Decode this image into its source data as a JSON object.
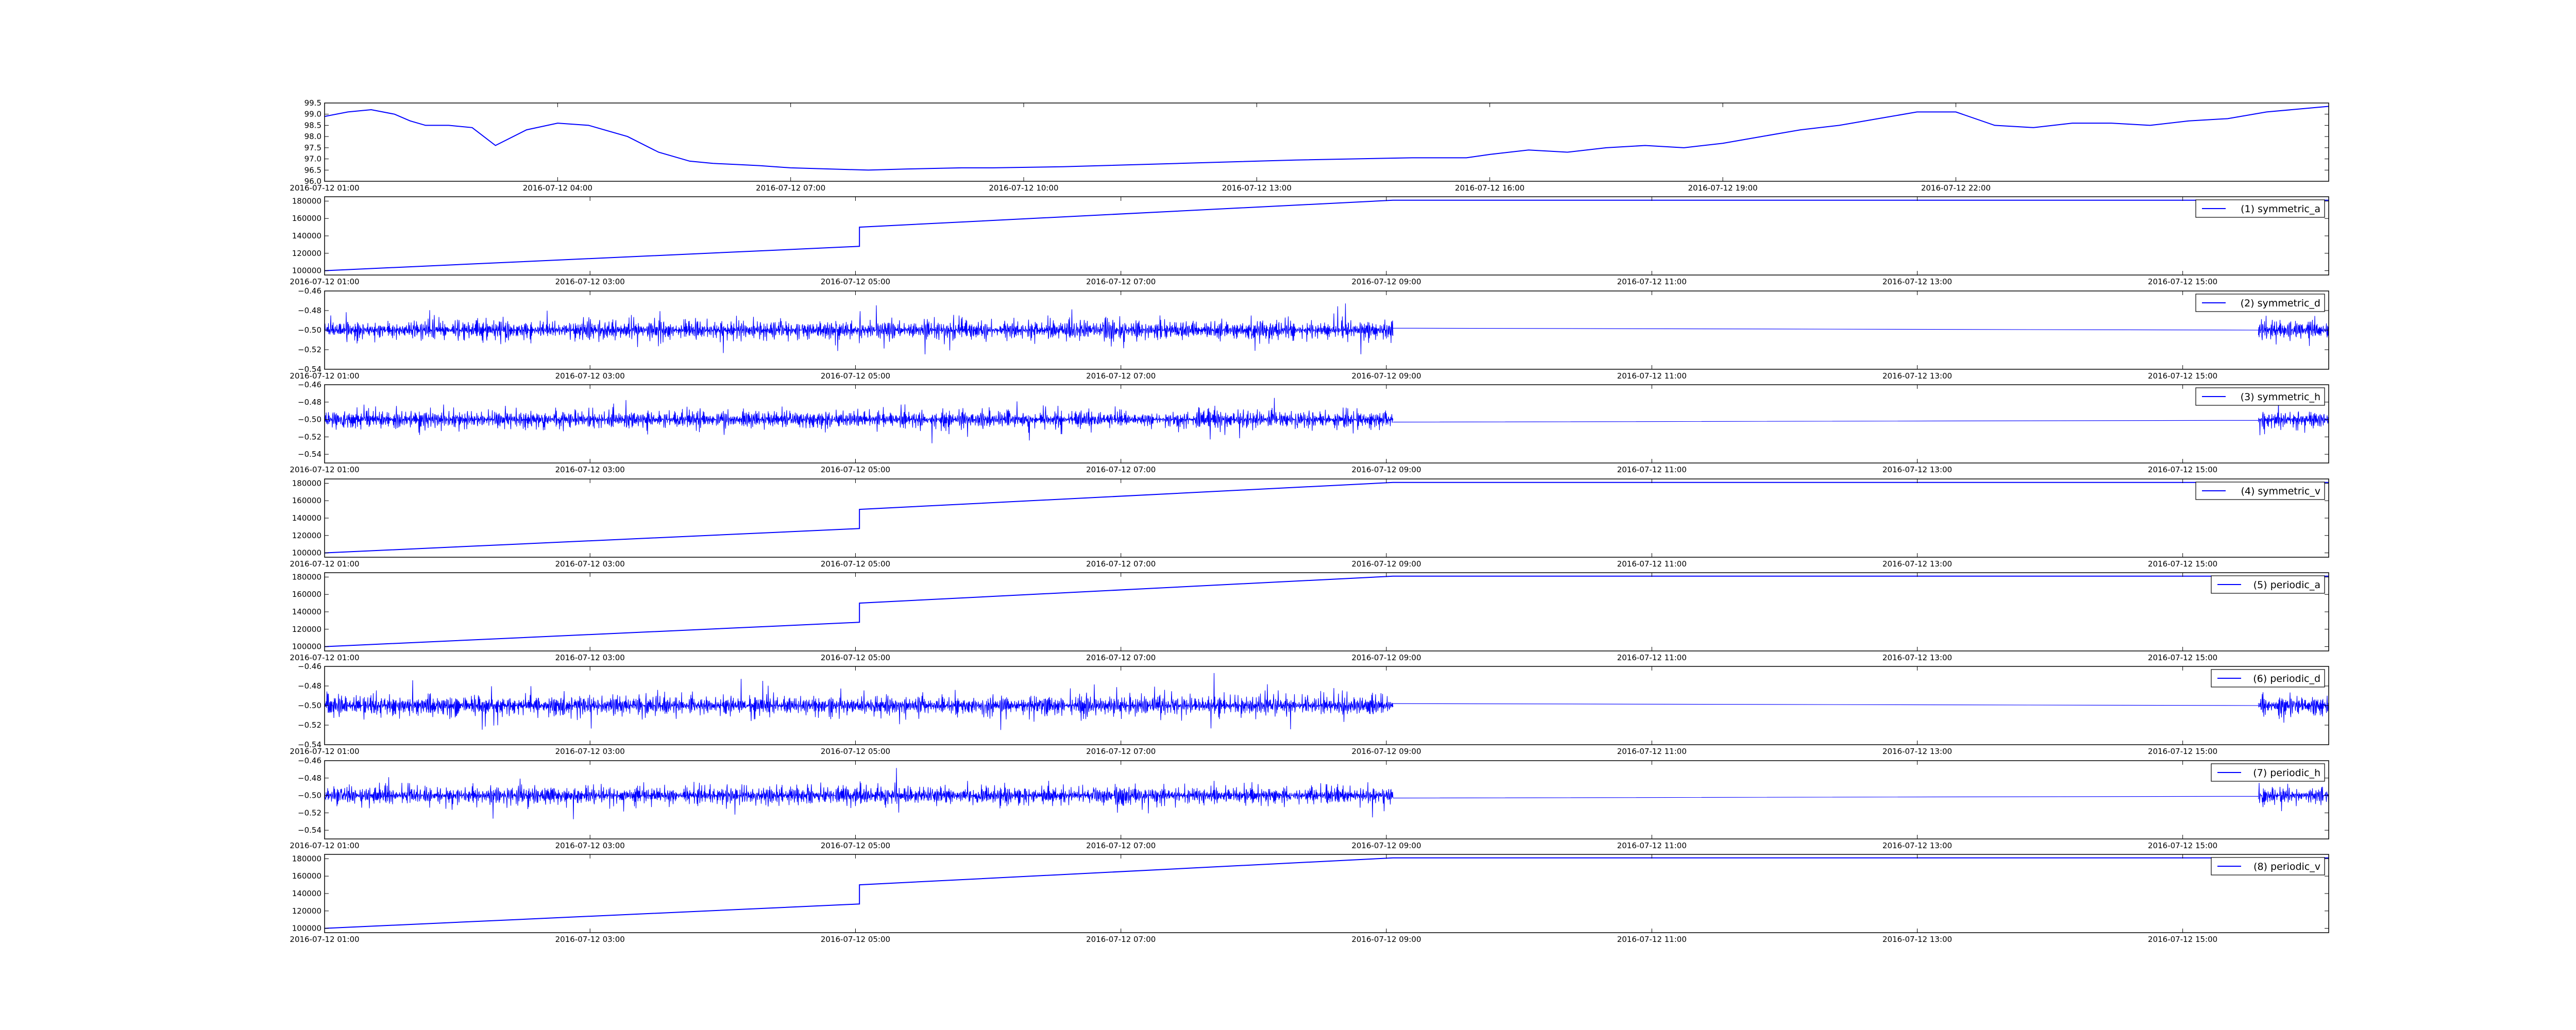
{
  "chart_data": [
    {
      "type": "line",
      "title": "",
      "xlabel": "",
      "ylabel": "",
      "color": "#0000ff",
      "legend": null,
      "xlim_hours": [
        1,
        26.8
      ],
      "ylim": [
        96.0,
        99.5
      ],
      "xtick_hours": [
        1,
        4,
        7,
        10,
        13,
        16,
        19,
        22
      ],
      "xtick_labels": [
        "2016-07-12 01:00",
        "2016-07-12 04:00",
        "2016-07-12 07:00",
        "2016-07-12 10:00",
        "2016-07-12 13:00",
        "2016-07-12 16:00",
        "2016-07-12 19:00",
        "2016-07-12 22:00"
      ],
      "yticks": [
        96.0,
        96.5,
        97.0,
        97.5,
        98.0,
        98.5,
        99.0,
        99.5
      ],
      "ytick_labels": [
        "96.0",
        "96.5",
        "97.0",
        "97.5",
        "98.0",
        "98.5",
        "99.0",
        "99.5"
      ],
      "x_hours": [
        1.0,
        1.3,
        1.6,
        1.9,
        2.1,
        2.3,
        2.6,
        2.9,
        3.2,
        3.6,
        4.0,
        4.4,
        4.9,
        5.3,
        5.5,
        5.7,
        6.0,
        6.3,
        6.6,
        7.0,
        7.5,
        8.0,
        8.5,
        9.2,
        9.6,
        10.5,
        12.0,
        13.5,
        15.0,
        15.7,
        16.0,
        16.5,
        17.0,
        17.5,
        18.0,
        18.5,
        19.0,
        19.5,
        20.0,
        20.5,
        21.0,
        21.5,
        22.0,
        22.5,
        23.0,
        23.5,
        24.0,
        24.5,
        25.0,
        25.5,
        26.0,
        26.8
      ],
      "y": [
        98.9,
        99.1,
        99.2,
        99.0,
        98.7,
        98.5,
        98.5,
        98.4,
        97.6,
        98.3,
        98.6,
        98.5,
        98.0,
        97.3,
        97.1,
        96.9,
        96.8,
        96.75,
        96.7,
        96.6,
        96.55,
        96.5,
        96.55,
        96.6,
        96.6,
        96.65,
        96.8,
        96.95,
        97.05,
        97.05,
        97.2,
        97.4,
        97.3,
        97.5,
        97.6,
        97.5,
        97.7,
        98.0,
        98.3,
        98.5,
        98.8,
        99.1,
        99.1,
        98.5,
        98.4,
        98.6,
        98.6,
        98.5,
        98.7,
        98.8,
        99.1,
        99.35
      ]
    },
    {
      "type": "line",
      "title": "",
      "legend": "(1) symmetric_a",
      "color": "#0000ff",
      "xlim_hours": [
        1,
        16.1
      ],
      "ylim": [
        95000,
        185000
      ],
      "y_offset_text": "1e+00(hidden)",
      "xtick_hours": [
        1,
        3,
        5,
        7,
        9,
        11,
        13,
        15
      ],
      "xtick_labels": [
        "2016-07-12 01:00",
        "2016-07-12 03:00",
        "2016-07-12 05:00",
        "2016-07-12 07:00",
        "2016-07-12 09:00",
        "2016-07-12 11:00",
        "2016-07-12 13:00",
        "2016-07-12 15:00"
      ],
      "yticks": [
        100000,
        120000,
        140000,
        160000,
        180000
      ],
      "ytick_labels": [
        "100000",
        "120000",
        "140000",
        "160000",
        "180000"
      ],
      "x_hours": [
        1.0,
        5.03,
        5.03,
        9.05,
        16.1
      ],
      "y": [
        100000,
        128000,
        150000,
        181000,
        181000
      ]
    },
    {
      "type": "line",
      "title": "",
      "legend": "(2) symmetric_d",
      "color": "#0000ff",
      "xlim_hours": [
        1,
        16.1
      ],
      "ylim": [
        -0.54,
        -0.46
      ],
      "xtick_hours": [
        1,
        3,
        5,
        7,
        9,
        11,
        13,
        15
      ],
      "xtick_labels": [
        "2016-07-12 01:00",
        "2016-07-12 03:00",
        "2016-07-12 05:00",
        "2016-07-12 07:00",
        "2016-07-12 09:00",
        "2016-07-12 11:00",
        "2016-07-12 13:00",
        "2016-07-12 15:00"
      ],
      "yticks": [
        -0.54,
        -0.52,
        -0.5,
        -0.48,
        -0.46
      ],
      "ytick_labels": [
        "−0.54",
        "−0.52",
        "−0.50",
        "−0.48",
        "−0.46"
      ],
      "noise": {
        "mean": -0.5,
        "amplitude": 0.018,
        "segments": [
          [
            1.0,
            9.05
          ],
          [
            15.57,
            16.1
          ]
        ],
        "flat_from": [
          9.05,
          -0.498
        ],
        "flat_to": [
          15.57,
          -0.5
        ]
      }
    },
    {
      "type": "line",
      "title": "",
      "legend": "(3) symmetric_h",
      "color": "#0000ff",
      "xlim_hours": [
        1,
        16.1
      ],
      "ylim": [
        -0.55,
        -0.46
      ],
      "xtick_hours": [
        1,
        3,
        5,
        7,
        9,
        11,
        13,
        15
      ],
      "xtick_labels": [
        "2016-07-12 01:00",
        "2016-07-12 03:00",
        "2016-07-12 05:00",
        "2016-07-12 07:00",
        "2016-07-12 09:00",
        "2016-07-12 11:00",
        "2016-07-12 13:00",
        "2016-07-12 15:00"
      ],
      "yticks": [
        -0.54,
        -0.52,
        -0.5,
        -0.48,
        -0.46
      ],
      "ytick_labels": [
        "−0.54",
        "−0.52",
        "−0.50",
        "−0.48",
        "−0.46"
      ],
      "noise": {
        "mean": -0.5,
        "amplitude": 0.018,
        "segments": [
          [
            1.0,
            9.05
          ],
          [
            15.57,
            16.1
          ]
        ],
        "flat_from": [
          9.05,
          -0.503
        ],
        "flat_to": [
          15.57,
          -0.501
        ]
      }
    },
    {
      "type": "line",
      "title": "",
      "legend": "(4) symmetric_v",
      "color": "#0000ff",
      "xlim_hours": [
        1,
        16.1
      ],
      "ylim": [
        95000,
        185000
      ],
      "xtick_hours": [
        1,
        3,
        5,
        7,
        9,
        11,
        13,
        15
      ],
      "xtick_labels": [
        "2016-07-12 01:00",
        "2016-07-12 03:00",
        "2016-07-12 05:00",
        "2016-07-12 07:00",
        "2016-07-12 09:00",
        "2016-07-12 11:00",
        "2016-07-12 13:00",
        "2016-07-12 15:00"
      ],
      "yticks": [
        100000,
        120000,
        140000,
        160000,
        180000
      ],
      "ytick_labels": [
        "100000",
        "120000",
        "140000",
        "160000",
        "180000"
      ],
      "x_hours": [
        1.0,
        5.03,
        5.03,
        9.05,
        16.1
      ],
      "y": [
        100000,
        128000,
        150000,
        181000,
        181000
      ]
    },
    {
      "type": "line",
      "title": "",
      "legend": "(5) periodic_a",
      "color": "#0000ff",
      "xlim_hours": [
        1,
        16.1
      ],
      "ylim": [
        95000,
        185000
      ],
      "xtick_hours": [
        1,
        3,
        5,
        7,
        9,
        11,
        13,
        15
      ],
      "xtick_labels": [
        "2016-07-12 01:00",
        "2016-07-12 03:00",
        "2016-07-12 05:00",
        "2016-07-12 07:00",
        "2016-07-12 09:00",
        "2016-07-12 11:00",
        "2016-07-12 13:00",
        "2016-07-12 15:00"
      ],
      "yticks": [
        100000,
        120000,
        140000,
        160000,
        180000
      ],
      "ytick_labels": [
        "100000",
        "120000",
        "140000",
        "160000",
        "180000"
      ],
      "x_hours": [
        1.0,
        5.03,
        5.03,
        9.05,
        16.1
      ],
      "y": [
        100000,
        128000,
        150000,
        181000,
        181000
      ]
    },
    {
      "type": "line",
      "title": "",
      "legend": "(6) periodic_d",
      "color": "#0000ff",
      "xlim_hours": [
        1,
        16.1
      ],
      "ylim": [
        -0.54,
        -0.46
      ],
      "xtick_hours": [
        1,
        3,
        5,
        7,
        9,
        11,
        13,
        15
      ],
      "xtick_labels": [
        "2016-07-12 01:00",
        "2016-07-12 03:00",
        "2016-07-12 05:00",
        "2016-07-12 07:00",
        "2016-07-12 09:00",
        "2016-07-12 11:00",
        "2016-07-12 13:00",
        "2016-07-12 15:00"
      ],
      "yticks": [
        -0.54,
        -0.52,
        -0.5,
        -0.48,
        -0.46
      ],
      "ytick_labels": [
        "−0.54",
        "−0.52",
        "−0.50",
        "−0.48",
        "−0.46"
      ],
      "noise": {
        "mean": -0.5,
        "amplitude": 0.018,
        "segments": [
          [
            1.0,
            9.05
          ],
          [
            15.57,
            16.1
          ]
        ],
        "flat_from": [
          9.05,
          -0.498
        ],
        "flat_to": [
          15.57,
          -0.5
        ]
      }
    },
    {
      "type": "line",
      "title": "",
      "legend": "(7) periodic_h",
      "color": "#0000ff",
      "xlim_hours": [
        1,
        16.1
      ],
      "ylim": [
        -0.55,
        -0.46
      ],
      "xtick_hours": [
        1,
        3,
        5,
        7,
        9,
        11,
        13,
        15
      ],
      "xtick_labels": [
        "2016-07-12 01:00",
        "2016-07-12 03:00",
        "2016-07-12 05:00",
        "2016-07-12 07:00",
        "2016-07-12 09:00",
        "2016-07-12 11:00",
        "2016-07-12 13:00",
        "2016-07-12 15:00"
      ],
      "yticks": [
        -0.54,
        -0.52,
        -0.5,
        -0.48,
        -0.46
      ],
      "ytick_labels": [
        "−0.54",
        "−0.52",
        "−0.50",
        "−0.48",
        "−0.46"
      ],
      "noise": {
        "mean": -0.5,
        "amplitude": 0.018,
        "segments": [
          [
            1.0,
            9.05
          ],
          [
            15.57,
            16.1
          ]
        ],
        "flat_from": [
          9.05,
          -0.503
        ],
        "flat_to": [
          15.57,
          -0.501
        ]
      }
    },
    {
      "type": "line",
      "title": "",
      "legend": "(8) periodic_v",
      "color": "#0000ff",
      "xlim_hours": [
        1,
        16.1
      ],
      "ylim": [
        95000,
        185000
      ],
      "xtick_hours": [
        1,
        3,
        5,
        7,
        9,
        11,
        13,
        15
      ],
      "xtick_labels": [
        "2016-07-12 01:00",
        "2016-07-12 03:00",
        "2016-07-12 05:00",
        "2016-07-12 07:00",
        "2016-07-12 09:00",
        "2016-07-12 11:00",
        "2016-07-12 13:00",
        "2016-07-12 15:00"
      ],
      "yticks": [
        100000,
        120000,
        140000,
        160000,
        180000
      ],
      "ytick_labels": [
        "100000",
        "120000",
        "140000",
        "160000",
        "180000"
      ],
      "x_hours": [
        1.0,
        5.03,
        5.03,
        9.05,
        16.1
      ],
      "y": [
        100000,
        128000,
        150000,
        181000,
        181000
      ]
    }
  ]
}
